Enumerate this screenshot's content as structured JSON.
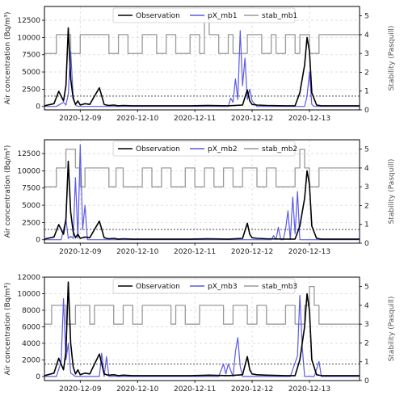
{
  "colors": {
    "observation": "#000000",
    "model": "#5a5ae6",
    "stability": "#9a9a9a",
    "threshold": "#333333",
    "grid": "#d9d9d9"
  },
  "chart_data": [
    {
      "type": "line",
      "ylabel": "Air concentration (Bq/m³)",
      "ylabel_right": "Stability (Pasquill)",
      "xlim": [
        "2020-12-08T09:00",
        "2020-12-13T21:00"
      ],
      "ylim": [
        -500,
        14500
      ],
      "ylim_right": [
        0,
        5.5
      ],
      "yticks": [
        0,
        2500,
        5000,
        7500,
        10000,
        12500
      ],
      "yticks_right": [
        0,
        1,
        2,
        3,
        4,
        5
      ],
      "xticks": [
        "2020-12-09",
        "2020-12-10",
        "2020-12-11",
        "2020-12-12",
        "2020-12-13"
      ],
      "threshold": 1500,
      "grid": true,
      "legend": {
        "placement": "top-center",
        "entries": [
          "Observation",
          "pX_mb1",
          "stab_mb1"
        ]
      },
      "series": [
        {
          "name": "Observation",
          "x": [
            "2020-12-08T09:00",
            "2020-12-08T13:00",
            "2020-12-08T15:00",
            "2020-12-08T17:00",
            "2020-12-08T18:00",
            "2020-12-08T19:00",
            "2020-12-08T20:00",
            "2020-12-08T21:00",
            "2020-12-08T22:00",
            "2020-12-08T23:00",
            "2020-12-09T00:00",
            "2020-12-09T02:00",
            "2020-12-09T04:00",
            "2020-12-09T06:00",
            "2020-12-09T08:00",
            "2020-12-09T10:00",
            "2020-12-09T11:00",
            "2020-12-09T12:00",
            "2020-12-09T14:00",
            "2020-12-09T16:00",
            "2020-12-09T18:00",
            "2020-12-09T22:00",
            "2020-12-10T06:00",
            "2020-12-10T14:00",
            "2020-12-10T22:00",
            "2020-12-11T06:00",
            "2020-12-11T14:00",
            "2020-12-11T20:00",
            "2020-12-11T22:00",
            "2020-12-11T23:00",
            "2020-12-12T00:00",
            "2020-12-12T02:00",
            "2020-12-12T06:00",
            "2020-12-12T14:00",
            "2020-12-12T18:00",
            "2020-12-12T20:00",
            "2020-12-12T22:00",
            "2020-12-12T23:00",
            "2020-12-13T00:00",
            "2020-12-13T01:00",
            "2020-12-13T03:00",
            "2020-12-13T05:00",
            "2020-12-13T10:00",
            "2020-12-13T16:00",
            "2020-12-13T21:00"
          ],
          "y": [
            100,
            400,
            2200,
            800,
            3000,
            11400,
            4000,
            1200,
            300,
            800,
            200,
            400,
            300,
            1500,
            2700,
            300,
            200,
            150,
            200,
            100,
            150,
            100,
            100,
            100,
            100,
            150,
            100,
            200,
            2400,
            800,
            300,
            200,
            150,
            100,
            100,
            2000,
            6000,
            10000,
            8000,
            2000,
            200,
            100,
            100,
            100,
            100
          ]
        },
        {
          "name": "pX_mb1",
          "x": [
            "2020-12-08T09:00",
            "2020-12-08T14:00",
            "2020-12-08T17:00",
            "2020-12-08T18:00",
            "2020-12-08T19:00",
            "2020-12-08T20:00",
            "2020-12-08T21:00",
            "2020-12-08T22:00",
            "2020-12-08T23:00",
            "2020-12-09T02:00",
            "2020-12-09T08:00",
            "2020-12-09T16:00",
            "2020-12-10T12:00",
            "2020-12-11T06:00",
            "2020-12-11T14:00",
            "2020-12-11T15:00",
            "2020-12-11T16:00",
            "2020-12-11T17:00",
            "2020-12-11T18:00",
            "2020-12-11T19:00",
            "2020-12-11T20:00",
            "2020-12-11T21:00",
            "2020-12-11T22:00",
            "2020-12-11T23:00",
            "2020-12-12T00:00",
            "2020-12-12T02:00",
            "2020-12-12T10:00",
            "2020-12-12T22:00",
            "2020-12-12T23:00",
            "2020-12-13T00:00",
            "2020-12-13T01:00",
            "2020-12-13T02:00",
            "2020-12-13T08:00",
            "2020-12-13T21:00"
          ],
          "y": [
            0,
            0,
            600,
            200,
            1800,
            8000,
            1500,
            200,
            0,
            0,
            0,
            0,
            0,
            0,
            0,
            1200,
            600,
            4000,
            1000,
            11000,
            3000,
            7000,
            1000,
            2500,
            800,
            0,
            0,
            0,
            1500,
            5000,
            300,
            0,
            0,
            0
          ]
        },
        {
          "name": "stab_mb1",
          "axis": "right",
          "step": true,
          "x": [
            "2020-12-08T09:00",
            "2020-12-08T14:00",
            "2020-12-08T20:00",
            "2020-12-09T00:00",
            "2020-12-09T12:00",
            "2020-12-09T16:00",
            "2020-12-09T20:00",
            "2020-12-10T02:00",
            "2020-12-10T08:00",
            "2020-12-10T12:00",
            "2020-12-10T16:00",
            "2020-12-10T22:00",
            "2020-12-11T02:00",
            "2020-12-11T04:00",
            "2020-12-11T06:00",
            "2020-12-11T10:00",
            "2020-12-11T14:00",
            "2020-12-11T16:00",
            "2020-12-11T22:00",
            "2020-12-12T04:00",
            "2020-12-12T08:00",
            "2020-12-12T10:00",
            "2020-12-12T14:00",
            "2020-12-12T18:00",
            "2020-12-12T20:00",
            "2020-12-13T00:00",
            "2020-12-13T04:00",
            "2020-12-13T21:00"
          ],
          "y": [
            3,
            4,
            3,
            4,
            3,
            4,
            3,
            4,
            3,
            4,
            3,
            4,
            3,
            5,
            4,
            3,
            4,
            3,
            4,
            3,
            4,
            3,
            4,
            3,
            4,
            3,
            4,
            4
          ]
        }
      ]
    },
    {
      "type": "line",
      "ylabel": "Air concentration (Bq/m³)",
      "ylabel_right": "Stability (Pasquill)",
      "xlim": [
        "2020-12-08T09:00",
        "2020-12-13T21:00"
      ],
      "ylim": [
        -500,
        14500
      ],
      "ylim_right": [
        0,
        5.5
      ],
      "yticks": [
        0,
        2500,
        5000,
        7500,
        10000,
        12500
      ],
      "yticks_right": [
        0,
        1,
        2,
        3,
        4,
        5
      ],
      "xticks": [
        "2020-12-09",
        "2020-12-10",
        "2020-12-11",
        "2020-12-12",
        "2020-12-13"
      ],
      "threshold": 1500,
      "grid": true,
      "legend": {
        "placement": "top-center",
        "entries": [
          "Observation",
          "pX_mb2",
          "stab_mb2"
        ]
      },
      "series": [
        {
          "name": "Observation",
          "x": [
            "2020-12-08T09:00",
            "2020-12-08T13:00",
            "2020-12-08T15:00",
            "2020-12-08T17:00",
            "2020-12-08T18:00",
            "2020-12-08T19:00",
            "2020-12-08T20:00",
            "2020-12-08T21:00",
            "2020-12-08T22:00",
            "2020-12-08T23:00",
            "2020-12-09T00:00",
            "2020-12-09T02:00",
            "2020-12-09T04:00",
            "2020-12-09T06:00",
            "2020-12-09T08:00",
            "2020-12-09T10:00",
            "2020-12-09T11:00",
            "2020-12-09T12:00",
            "2020-12-09T14:00",
            "2020-12-09T16:00",
            "2020-12-09T18:00",
            "2020-12-09T22:00",
            "2020-12-10T06:00",
            "2020-12-10T14:00",
            "2020-12-10T22:00",
            "2020-12-11T06:00",
            "2020-12-11T14:00",
            "2020-12-11T20:00",
            "2020-12-11T22:00",
            "2020-12-11T23:00",
            "2020-12-12T00:00",
            "2020-12-12T02:00",
            "2020-12-12T06:00",
            "2020-12-12T14:00",
            "2020-12-12T18:00",
            "2020-12-12T20:00",
            "2020-12-12T22:00",
            "2020-12-12T23:00",
            "2020-12-13T00:00",
            "2020-12-13T01:00",
            "2020-12-13T03:00",
            "2020-12-13T05:00",
            "2020-12-13T10:00",
            "2020-12-13T16:00",
            "2020-12-13T21:00"
          ],
          "y": [
            100,
            400,
            2200,
            800,
            3000,
            11400,
            4000,
            1200,
            300,
            800,
            200,
            400,
            300,
            1500,
            2700,
            300,
            200,
            150,
            200,
            100,
            150,
            100,
            100,
            100,
            100,
            150,
            100,
            200,
            2400,
            800,
            300,
            200,
            150,
            100,
            100,
            2000,
            6000,
            10000,
            8000,
            2000,
            200,
            100,
            100,
            100,
            100
          ]
        },
        {
          "name": "pX_mb2",
          "x": [
            "2020-12-08T09:00",
            "2020-12-08T16:00",
            "2020-12-08T18:00",
            "2020-12-08T19:00",
            "2020-12-08T20:00",
            "2020-12-08T21:00",
            "2020-12-08T22:00",
            "2020-12-08T23:00",
            "2020-12-09T00:00",
            "2020-12-09T01:00",
            "2020-12-09T02:00",
            "2020-12-09T03:00",
            "2020-12-09T04:00",
            "2020-12-09T08:00",
            "2020-12-10T12:00",
            "2020-12-11T20:00",
            "2020-12-12T08:00",
            "2020-12-12T09:00",
            "2020-12-12T10:00",
            "2020-12-12T11:00",
            "2020-12-12T12:00",
            "2020-12-12T13:00",
            "2020-12-12T14:00",
            "2020-12-12T15:00",
            "2020-12-12T16:00",
            "2020-12-12T17:00",
            "2020-12-12T18:00",
            "2020-12-12T19:00",
            "2020-12-12T20:00",
            "2020-12-12T21:00",
            "2020-12-12T22:00",
            "2020-12-13T21:00"
          ],
          "y": [
            0,
            0,
            3000,
            200,
            500,
            200,
            9000,
            200,
            13800,
            1500,
            5000,
            0,
            0,
            0,
            0,
            0,
            0,
            600,
            0,
            1800,
            0,
            0,
            1500,
            4200,
            0,
            6200,
            900,
            7000,
            0,
            0,
            0,
            0
          ]
        },
        {
          "name": "stab_mb2",
          "axis": "right",
          "step": true,
          "x": [
            "2020-12-08T09:00",
            "2020-12-08T14:00",
            "2020-12-08T18:00",
            "2020-12-08T22:00",
            "2020-12-09T00:00",
            "2020-12-09T02:00",
            "2020-12-09T12:00",
            "2020-12-09T15:00",
            "2020-12-09T18:00",
            "2020-12-10T02:00",
            "2020-12-10T06:00",
            "2020-12-10T10:00",
            "2020-12-10T14:00",
            "2020-12-10T20:00",
            "2020-12-11T00:00",
            "2020-12-11T04:00",
            "2020-12-11T08:00",
            "2020-12-11T12:00",
            "2020-12-11T16:00",
            "2020-12-11T20:00",
            "2020-12-12T02:00",
            "2020-12-12T06:00",
            "2020-12-12T10:00",
            "2020-12-12T18:00",
            "2020-12-12T20:00",
            "2020-12-12T22:00",
            "2020-12-13T00:00",
            "2020-12-13T04:00",
            "2020-12-13T21:00"
          ],
          "y": [
            3,
            4,
            5,
            4,
            3,
            4,
            3,
            4,
            3,
            4,
            3,
            4,
            3,
            4,
            3,
            4,
            3,
            4,
            3,
            4,
            3,
            4,
            3,
            4,
            5,
            4,
            3,
            4,
            4
          ]
        }
      ]
    },
    {
      "type": "line",
      "ylabel": "Air concentration (Bq/m³)",
      "ylabel_right": "Stability (Pasquill)",
      "xlim": [
        "2020-12-08T09:00",
        "2020-12-13T21:00"
      ],
      "ylim": [
        -500,
        12000
      ],
      "ylim_right": [
        0,
        5.5
      ],
      "yticks": [
        0,
        2000,
        4000,
        6000,
        8000,
        10000,
        12000
      ],
      "yticks_right": [
        0,
        1,
        2,
        3,
        4,
        5
      ],
      "xticks": [
        "2020-12-09",
        "2020-12-10",
        "2020-12-11",
        "2020-12-12",
        "2020-12-13"
      ],
      "threshold": 1500,
      "grid": true,
      "legend": {
        "placement": "top-center",
        "entries": [
          "Observation",
          "pX_mb3",
          "stab_mb3"
        ]
      },
      "series": [
        {
          "name": "Observation",
          "x": [
            "2020-12-08T09:00",
            "2020-12-08T13:00",
            "2020-12-08T15:00",
            "2020-12-08T17:00",
            "2020-12-08T18:00",
            "2020-12-08T19:00",
            "2020-12-08T20:00",
            "2020-12-08T21:00",
            "2020-12-08T22:00",
            "2020-12-08T23:00",
            "2020-12-09T00:00",
            "2020-12-09T02:00",
            "2020-12-09T04:00",
            "2020-12-09T06:00",
            "2020-12-09T08:00",
            "2020-12-09T10:00",
            "2020-12-09T11:00",
            "2020-12-09T12:00",
            "2020-12-09T14:00",
            "2020-12-09T16:00",
            "2020-12-09T18:00",
            "2020-12-09T22:00",
            "2020-12-10T06:00",
            "2020-12-10T14:00",
            "2020-12-10T22:00",
            "2020-12-11T06:00",
            "2020-12-11T14:00",
            "2020-12-11T20:00",
            "2020-12-11T22:00",
            "2020-12-11T23:00",
            "2020-12-12T00:00",
            "2020-12-12T02:00",
            "2020-12-12T06:00",
            "2020-12-12T14:00",
            "2020-12-12T18:00",
            "2020-12-12T20:00",
            "2020-12-12T22:00",
            "2020-12-12T23:00",
            "2020-12-13T00:00",
            "2020-12-13T01:00",
            "2020-12-13T03:00",
            "2020-12-13T05:00",
            "2020-12-13T10:00",
            "2020-12-13T16:00",
            "2020-12-13T21:00"
          ],
          "y": [
            100,
            400,
            2200,
            800,
            3000,
            11400,
            4000,
            1200,
            300,
            800,
            200,
            400,
            300,
            1500,
            2700,
            300,
            200,
            150,
            200,
            100,
            150,
            100,
            100,
            100,
            100,
            150,
            100,
            200,
            2400,
            800,
            300,
            200,
            150,
            100,
            100,
            2000,
            6000,
            10000,
            8000,
            2000,
            200,
            100,
            100,
            100,
            100
          ]
        },
        {
          "name": "pX_mb3",
          "x": [
            "2020-12-08T09:00",
            "2020-12-08T14:00",
            "2020-12-08T16:00",
            "2020-12-08T17:00",
            "2020-12-08T18:00",
            "2020-12-08T19:00",
            "2020-12-08T20:00",
            "2020-12-08T22:00",
            "2020-12-09T02:00",
            "2020-12-09T08:00",
            "2020-12-09T09:00",
            "2020-12-09T10:00",
            "2020-12-09T11:00",
            "2020-12-09T12:00",
            "2020-12-09T16:00",
            "2020-12-11T10:00",
            "2020-12-11T12:00",
            "2020-12-11T13:00",
            "2020-12-11T14:00",
            "2020-12-11T16:00",
            "2020-12-11T17:00",
            "2020-12-11T18:00",
            "2020-12-11T19:00",
            "2020-12-11T20:00",
            "2020-12-11T21:00",
            "2020-12-12T00:00",
            "2020-12-12T16:00",
            "2020-12-12T19:00",
            "2020-12-12T20:00",
            "2020-12-12T21:00",
            "2020-12-12T22:00",
            "2020-12-12T23:00",
            "2020-12-13T00:00",
            "2020-12-13T02:00",
            "2020-12-13T04:00",
            "2020-12-13T05:00",
            "2020-12-13T08:00",
            "2020-12-13T21:00"
          ],
          "y": [
            0,
            0,
            1800,
            9400,
            2000,
            4000,
            400,
            0,
            0,
            0,
            2800,
            0,
            2400,
            0,
            0,
            0,
            1500,
            300,
            1500,
            0,
            3000,
            4700,
            1200,
            0,
            0,
            0,
            0,
            2500,
            9800,
            3500,
            0,
            0,
            0,
            0,
            1800,
            0,
            0,
            0
          ]
        },
        {
          "name": "stab_mb3",
          "axis": "right",
          "step": true,
          "x": [
            "2020-12-08T09:00",
            "2020-12-08T12:00",
            "2020-12-08T18:00",
            "2020-12-08T22:00",
            "2020-12-09T04:00",
            "2020-12-09T06:00",
            "2020-12-09T14:00",
            "2020-12-09T18:00",
            "2020-12-09T22:00",
            "2020-12-10T02:00",
            "2020-12-10T14:00",
            "2020-12-10T16:00",
            "2020-12-10T20:00",
            "2020-12-11T02:00",
            "2020-12-11T12:00",
            "2020-12-11T16:00",
            "2020-12-11T22:00",
            "2020-12-12T02:00",
            "2020-12-12T06:00",
            "2020-12-12T14:00",
            "2020-12-12T18:00",
            "2020-12-12T22:00",
            "2020-12-13T00:00",
            "2020-12-13T02:00",
            "2020-12-13T04:00",
            "2020-12-13T21:00"
          ],
          "y": [
            3,
            4,
            3,
            4,
            3,
            4,
            3,
            4,
            3,
            4,
            3,
            4,
            3,
            4,
            3,
            4,
            3,
            4,
            3,
            4,
            3,
            4,
            5,
            4,
            3,
            3
          ]
        }
      ]
    }
  ]
}
